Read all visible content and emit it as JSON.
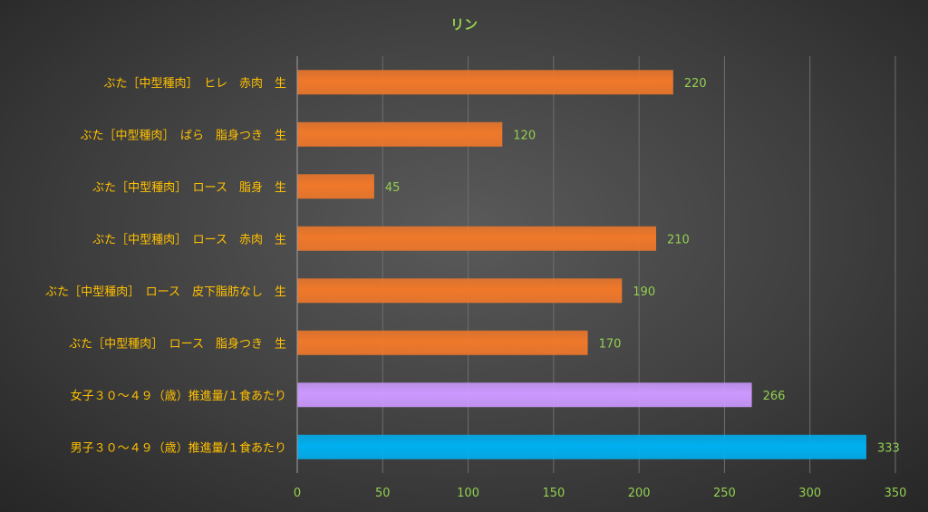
{
  "chart_data": {
    "type": "bar",
    "orientation": "horizontal",
    "title": "リン",
    "categories": [
      "ぶた［中型種肉］　ヒレ　赤肉　生",
      "ぶた［中型種肉］　ばら　脂身つき　生",
      "ぶた［中型種肉］　ロース　脂身　生",
      "ぶた［中型種肉］　ロース　赤肉　生",
      "ぶた［中型種肉］　ロース　皮下脂肪なし　生",
      "ぶた［中型種肉］　ロース　脂身つき　生",
      "女子３０〜４９（歳）推進量/１食あたり",
      "男子３０〜４９（歳）推進量/１食あたり"
    ],
    "values": [
      220,
      120,
      45,
      210,
      190,
      170,
      266,
      333
    ],
    "data_labels": [
      "220",
      "120",
      "45",
      "210",
      "190",
      "170",
      "266",
      "333"
    ],
    "xlim": [
      0,
      350
    ],
    "xticks": [
      0,
      50,
      100,
      150,
      200,
      250,
      300,
      350
    ],
    "xtick_labels": [
      "0",
      "50",
      "100",
      "150",
      "200",
      "250",
      "300",
      "350"
    ],
    "grid": "vertical",
    "legend": "none"
  },
  "colors": {
    "pork_bar": "#F0782A",
    "female_bar": "#CC99FF",
    "male_bar": "#00B0F0",
    "title_text": "#92D050",
    "category_text": "#FFC000",
    "tick_text": "#92D050",
    "data_label_text": "#92D050",
    "gridline": "#6E6E6E",
    "axis_line": "#A0A0A0"
  },
  "bar_colors": [
    "pork_bar",
    "pork_bar",
    "pork_bar",
    "pork_bar",
    "pork_bar",
    "pork_bar",
    "female_bar",
    "male_bar"
  ]
}
